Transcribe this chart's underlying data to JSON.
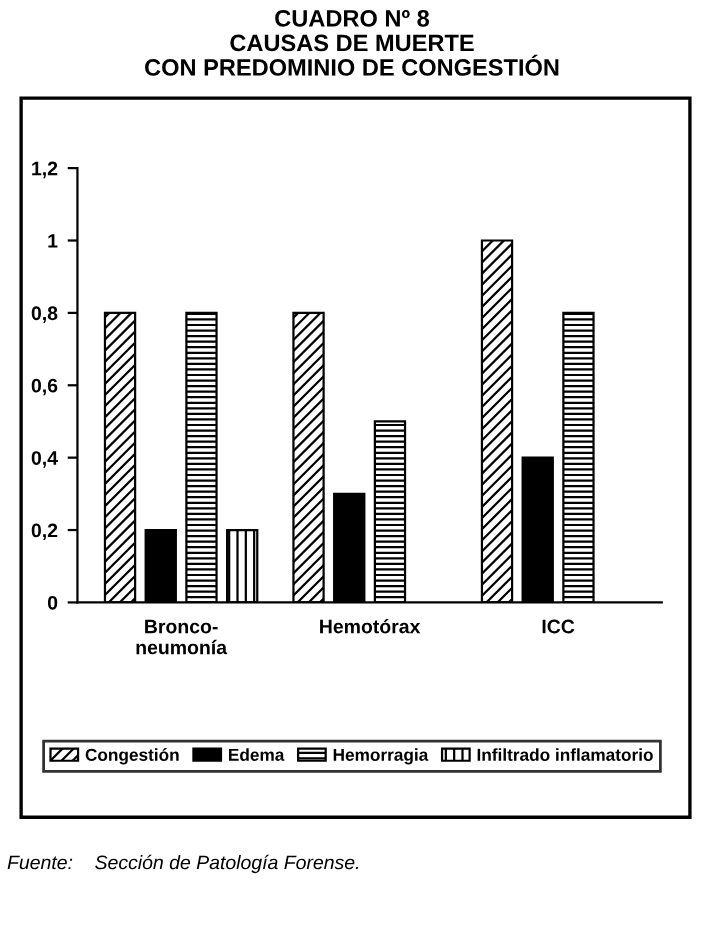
{
  "chart_data": {
    "type": "bar",
    "title": "CUADRO Nº 8\nCAUSAS DE MUERTE\nCON PREDOMINIO DE CONGESTIÓN",
    "categories": [
      "Bronco-\nneumonía",
      "Hemotórax",
      "ICC"
    ],
    "series": [
      {
        "name": "Congestión",
        "color": "#000000",
        "values": [
          0.8,
          0.8,
          1.0
        ]
      },
      {
        "name": "Edema",
        "color": "#000000",
        "values": [
          0.2,
          0.3,
          0.4
        ]
      },
      {
        "name": "Hemorragia",
        "color": "#000000",
        "values": [
          0.8,
          0.5,
          0.8
        ]
      },
      {
        "name": "Infiltrado inflamatorio",
        "color": "#000000",
        "values": [
          0.2,
          null,
          null
        ]
      }
    ],
    "ylim": [
      0,
      1.2
    ],
    "yticks": [
      0,
      {
        "value": 0.2,
        "label": "0,2"
      },
      {
        "value": 0.4,
        "label": "0,4"
      },
      {
        "value": 0.6,
        "label": "0,6"
      },
      {
        "value": 0.8,
        "label": "0,8"
      },
      1,
      {
        "value": 1.2,
        "label": "1,2"
      }
    ],
    "grid": false,
    "legend": "bottom",
    "annotations": [
      "Fuente:    Sección de Patología Forense."
    ]
  }
}
